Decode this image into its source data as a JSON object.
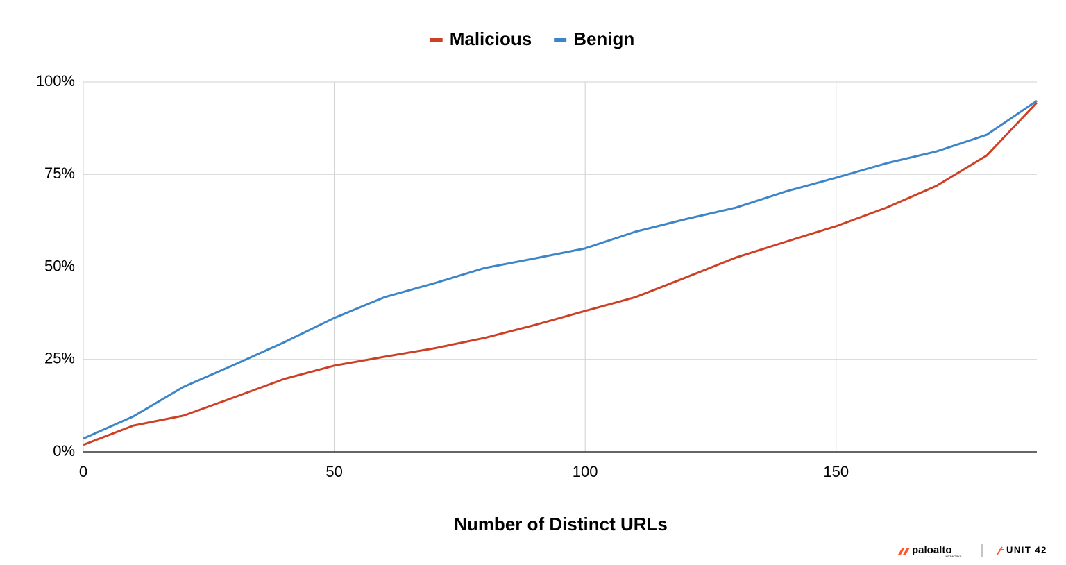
{
  "chart_data": {
    "type": "line",
    "x_label": "Number of Distinct URLs",
    "x": [
      0,
      10,
      20,
      30,
      40,
      50,
      60,
      70,
      80,
      90,
      100,
      110,
      120,
      130,
      140,
      150,
      160,
      170,
      180,
      190
    ],
    "series": [
      {
        "name": "Malicious",
        "color": "#cc4125",
        "values": [
          1.9,
          7.1,
          9.8,
          14.7,
          19.7,
          23.3,
          25.7,
          28,
          30.8,
          34.3,
          38.1,
          41.8,
          47.1,
          52.5,
          56.8,
          61,
          66,
          71.9,
          80.1,
          94.4
        ]
      },
      {
        "name": "Benign",
        "color": "#3d85c6",
        "values": [
          3.6,
          9.6,
          17.6,
          23.5,
          29.6,
          36.2,
          41.8,
          45.6,
          49.7,
          52.3,
          55,
          59.5,
          62.9,
          66,
          70.4,
          74.1,
          78,
          81.2,
          85.7,
          94.9
        ]
      }
    ],
    "xlim": [
      0,
      190
    ],
    "xticks": [
      0,
      50,
      100,
      150
    ],
    "ylim": [
      0,
      100
    ],
    "yticks": [
      {
        "value": 0,
        "label": "0%"
      },
      {
        "value": 25,
        "label": "25%"
      },
      {
        "value": 50,
        "label": "50%"
      },
      {
        "value": 75,
        "label": "75%"
      },
      {
        "value": 100,
        "label": "100%"
      }
    ],
    "grid": true,
    "legend": "top"
  },
  "logo": {
    "brand": "paloalto",
    "sub": "NETWORKS",
    "unit": "UNIT 42"
  }
}
